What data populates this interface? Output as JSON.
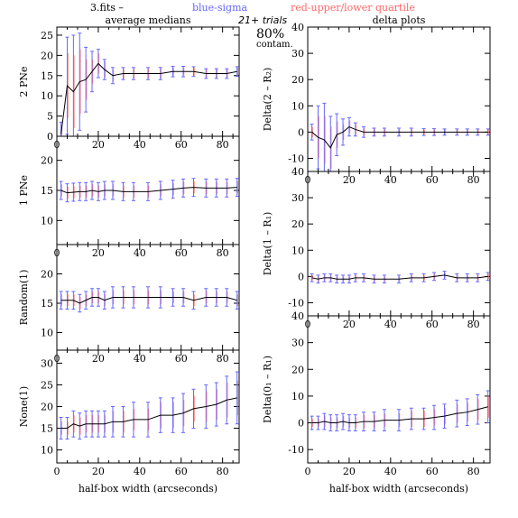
{
  "header": {
    "file_label": "3.fits  –",
    "blue_label": "blue-sigma",
    "red_label": "red-upper/lower quartile",
    "trials": "21+ trials",
    "contam_pct": "80%",
    "contam_word": "contam.",
    "left_title": "average medians",
    "right_title": "delta plots"
  },
  "colors": {
    "median_line": "#000000",
    "sigma": "#6666ff",
    "quartile": "#ff6666",
    "axis": "#000000"
  },
  "xlabel_text": "half-box width (arcseconds)",
  "chart_data": [
    {
      "type": "line",
      "column": "left",
      "ylabel": "2 PNe",
      "xlim": [
        0,
        88
      ],
      "ylim": [
        0,
        27
      ],
      "xticks": [
        0,
        20,
        40,
        60,
        80
      ],
      "yticks": [
        0,
        5,
        10,
        15,
        20,
        25
      ],
      "x": [
        2,
        5,
        8,
        11,
        14,
        17,
        20,
        23,
        27,
        32,
        37,
        44,
        50,
        56,
        61,
        66,
        72,
        77,
        82,
        87
      ],
      "y": [
        0.5,
        12.5,
        11,
        13.5,
        14,
        16,
        18,
        16.5,
        15,
        15.5,
        15.5,
        15.5,
        15.5,
        16,
        16,
        16,
        15.5,
        15.5,
        15.5,
        16
      ],
      "sigma_err": [
        3,
        12,
        14,
        12,
        8,
        5,
        3.5,
        2.5,
        2,
        1.5,
        1.5,
        1.5,
        1.5,
        1.3,
        1.3,
        1.2,
        1.2,
        1.2,
        1.2,
        1.2
      ],
      "quartile_err": [
        2,
        8,
        9,
        8,
        5,
        3,
        2.5,
        2,
        1.5,
        1.2,
        1.2,
        1.2,
        1.2,
        1,
        1,
        1,
        1,
        1,
        1,
        1
      ]
    },
    {
      "type": "line",
      "column": "left",
      "ylabel": "1 PNe",
      "xlim": [
        0,
        88
      ],
      "ylim": [
        6,
        24
      ],
      "xticks": [
        0,
        20,
        40,
        60,
        80
      ],
      "yticks": [
        10,
        15,
        20
      ],
      "x": [
        2,
        5,
        8,
        11,
        14,
        17,
        20,
        23,
        27,
        32,
        37,
        44,
        50,
        56,
        61,
        66,
        72,
        77,
        82,
        87
      ],
      "y": [
        15,
        14.6,
        14.7,
        14.8,
        14.8,
        15,
        14.8,
        15,
        15,
        14.8,
        14.8,
        14.8,
        15,
        15.2,
        15.4,
        15.5,
        15.4,
        15.4,
        15.4,
        15.5
      ],
      "sigma_err": [
        1.5,
        1.5,
        1.5,
        1.5,
        1.5,
        1.5,
        1.5,
        1.5,
        1.5,
        1.5,
        1.5,
        1.5,
        1.5,
        1.5,
        1.5,
        1.5,
        1.5,
        1.5,
        1.5,
        1.5
      ],
      "quartile_err": [
        1,
        1,
        1,
        1,
        1,
        1,
        1,
        1,
        1,
        1,
        1,
        1,
        1,
        1,
        1,
        1,
        1,
        1,
        1,
        1
      ]
    },
    {
      "type": "line",
      "column": "left",
      "ylabel": "Random(1)",
      "xlim": [
        0,
        88
      ],
      "ylim": [
        7,
        25
      ],
      "xticks": [
        0,
        20,
        40,
        60,
        80
      ],
      "yticks": [
        10,
        15,
        20
      ],
      "x": [
        2,
        5,
        8,
        11,
        14,
        17,
        20,
        23,
        27,
        32,
        37,
        44,
        50,
        56,
        61,
        66,
        72,
        77,
        82,
        87
      ],
      "y": [
        15.5,
        15.5,
        15.5,
        15,
        15.5,
        16,
        16,
        15.5,
        16,
        16,
        16,
        16,
        16,
        16,
        16,
        15.5,
        16,
        16,
        16,
        15.5
      ],
      "sigma_err": [
        1.5,
        1.5,
        1.5,
        1.5,
        1.5,
        1.5,
        1.5,
        1.5,
        1.8,
        1.8,
        1.8,
        1.8,
        1.8,
        1.5,
        1.5,
        1.5,
        1.5,
        1.5,
        1.5,
        1.5
      ],
      "quartile_err": [
        1,
        1,
        1,
        1,
        1,
        1,
        1,
        1,
        1.2,
        1.2,
        1.2,
        1.2,
        1.2,
        1,
        1,
        1,
        1,
        1,
        1,
        1
      ]
    },
    {
      "type": "line",
      "column": "left",
      "ylabel": "None(1)",
      "xlim": [
        0,
        88
      ],
      "ylim": [
        7,
        33
      ],
      "xticks": [
        0,
        20,
        40,
        60,
        80
      ],
      "yticks": [
        10,
        15,
        20,
        25,
        30
      ],
      "x": [
        2,
        5,
        8,
        11,
        14,
        17,
        20,
        23,
        27,
        32,
        37,
        44,
        50,
        56,
        61,
        66,
        72,
        77,
        82,
        87
      ],
      "y": [
        15,
        15,
        16,
        15.5,
        16,
        16,
        16,
        16,
        16.5,
        16.5,
        17,
        17,
        18,
        18,
        18.5,
        19.5,
        20,
        20.5,
        21.5,
        22
      ],
      "sigma_err": [
        2.5,
        2.5,
        3,
        3,
        3,
        3,
        3,
        3,
        3.5,
        3.5,
        4,
        4,
        4,
        4,
        4.5,
        4.5,
        5,
        5,
        5.5,
        6
      ],
      "quartile_err": [
        1.5,
        1.5,
        2,
        2,
        2,
        2,
        2,
        2,
        2.5,
        2.5,
        2.5,
        2.5,
        3,
        3,
        3,
        3,
        3.5,
        3.5,
        4,
        4
      ]
    },
    {
      "type": "line",
      "column": "right",
      "ylabel": "Delta(2 – R₂)",
      "xlim": [
        0,
        88
      ],
      "ylim": [
        -15,
        40
      ],
      "xticks": [
        0,
        20,
        40,
        60,
        80
      ],
      "yticks": [
        -10,
        0,
        10,
        20,
        30,
        40
      ],
      "x": [
        2,
        5,
        8,
        11,
        14,
        17,
        20,
        23,
        27,
        32,
        37,
        44,
        50,
        56,
        61,
        66,
        72,
        77,
        82,
        87
      ],
      "y": [
        0,
        -2,
        -3,
        -6,
        -1,
        0,
        2,
        1,
        0,
        0,
        0,
        0,
        0,
        0,
        0,
        0,
        0,
        0,
        0,
        0
      ],
      "sigma_err": [
        3,
        12,
        14,
        12,
        8,
        5,
        3.5,
        2.5,
        2,
        1.5,
        1.5,
        1.5,
        1.5,
        1.3,
        1.3,
        1.2,
        1.2,
        1.2,
        1.2,
        1.2
      ],
      "quartile_err": [
        2,
        8,
        9,
        8,
        5,
        3,
        2.5,
        2,
        1.5,
        1.2,
        1.2,
        1.2,
        1.2,
        1,
        1,
        1,
        1,
        1,
        1,
        1
      ]
    },
    {
      "type": "line",
      "column": "right",
      "ylabel": "Delta(1 – R₁)",
      "xlim": [
        0,
        88
      ],
      "ylim": [
        -15,
        40
      ],
      "xticks": [
        0,
        20,
        40,
        60,
        80
      ],
      "yticks": [
        -10,
        0,
        10,
        20,
        30,
        40
      ],
      "x": [
        2,
        5,
        8,
        11,
        14,
        17,
        20,
        23,
        27,
        32,
        37,
        44,
        50,
        56,
        61,
        66,
        72,
        77,
        82,
        87
      ],
      "y": [
        -0.5,
        -1,
        -0.5,
        -0.5,
        -1,
        -1,
        -1,
        -0.5,
        -0.5,
        -1,
        -1,
        -1,
        -0.5,
        -0.5,
        0,
        0.5,
        -0.5,
        -0.5,
        -0.5,
        0
      ],
      "sigma_err": [
        1.5,
        1.5,
        1.5,
        1.5,
        1.5,
        1.5,
        1.5,
        1.5,
        1.5,
        1.5,
        1.5,
        1.5,
        1.5,
        1.5,
        1.5,
        1.5,
        1.5,
        1.5,
        1.5,
        1.5
      ],
      "quartile_err": [
        1,
        1,
        1,
        1,
        1,
        1,
        1,
        1,
        1,
        1,
        1,
        1,
        1,
        1,
        1,
        1,
        1,
        1,
        1,
        1
      ]
    },
    {
      "type": "line",
      "column": "right",
      "ylabel": "Delta(0₁ – R₁)",
      "xlim": [
        0,
        88
      ],
      "ylim": [
        -15,
        40
      ],
      "xticks": [
        0,
        20,
        40,
        60,
        80
      ],
      "yticks": [
        -10,
        0,
        10,
        20,
        30,
        40
      ],
      "x": [
        2,
        5,
        8,
        11,
        14,
        17,
        20,
        23,
        27,
        32,
        37,
        44,
        50,
        56,
        61,
        66,
        72,
        77,
        82,
        87
      ],
      "y": [
        0,
        0,
        0.5,
        0,
        0,
        0.5,
        0,
        0,
        0.5,
        0.5,
        1,
        1,
        1.5,
        1.5,
        2,
        2.5,
        3.5,
        4,
        5,
        6
      ],
      "sigma_err": [
        2.5,
        2.5,
        3,
        3,
        3,
        3,
        3,
        3,
        3.5,
        3.5,
        4,
        4,
        4,
        4,
        4.5,
        4.5,
        5,
        5,
        5.5,
        6
      ],
      "quartile_err": [
        1.5,
        1.5,
        2,
        2,
        2,
        2,
        2,
        2,
        2.5,
        2.5,
        2.5,
        2.5,
        3,
        3,
        3,
        3,
        3.5,
        3.5,
        4,
        4
      ]
    }
  ]
}
